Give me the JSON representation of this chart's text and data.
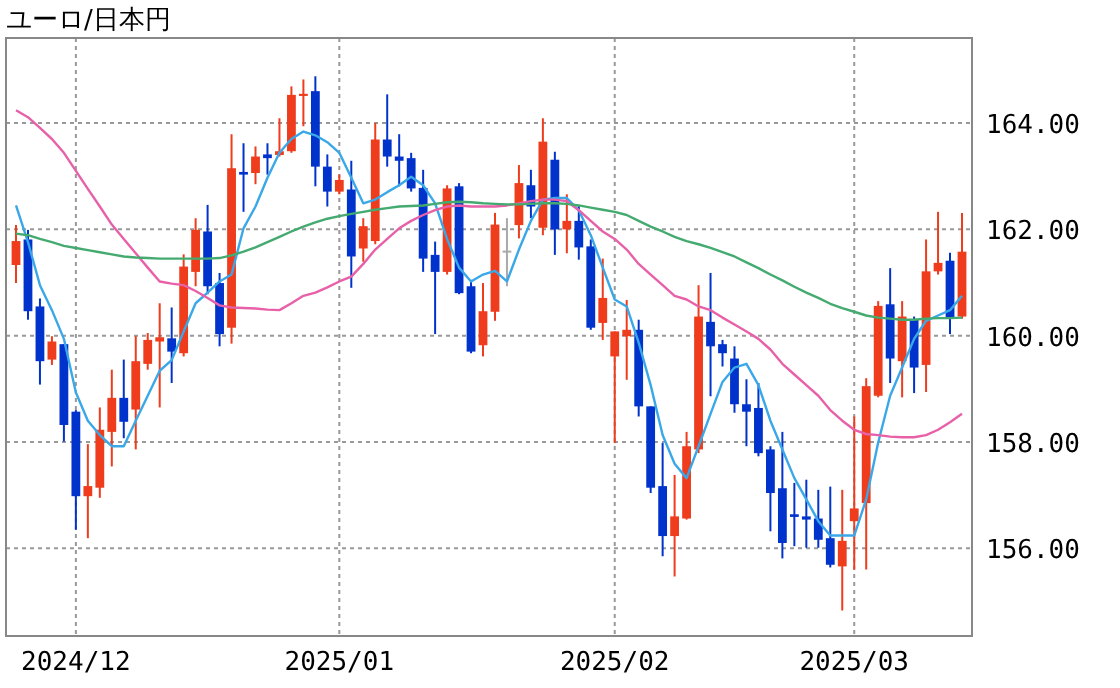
{
  "chart_data": {
    "type": "candlestick",
    "title": "ユーロ/日本円",
    "categories": [
      null,
      null,
      null,
      null,
      null,
      "2024/12",
      null,
      null,
      null,
      null,
      null,
      null,
      null,
      null,
      null,
      null,
      null,
      null,
      null,
      null,
      null,
      null,
      null,
      null,
      null,
      null,
      null,
      "2025/01",
      null,
      null,
      null,
      null,
      null,
      null,
      null,
      null,
      null,
      null,
      null,
      null,
      null,
      null,
      null,
      null,
      null,
      null,
      null,
      null,
      null,
      null,
      "2025/02",
      null,
      null,
      null,
      null,
      null,
      null,
      null,
      null,
      null,
      null,
      null,
      null,
      null,
      null,
      null,
      null,
      null,
      null,
      null,
      "2025/03",
      null,
      null,
      null,
      null,
      null,
      null,
      null,
      null,
      null
    ],
    "ohlc": [
      [
        161.33,
        162.08,
        160.99,
        161.78
      ],
      [
        161.81,
        161.99,
        160.3,
        160.46
      ],
      [
        160.55,
        160.7,
        159.08,
        159.52
      ],
      [
        159.55,
        159.99,
        159.45,
        159.89
      ],
      [
        159.84,
        159.84,
        158.01,
        158.32
      ],
      [
        158.57,
        158.6,
        156.35,
        156.98
      ],
      [
        156.98,
        157.96,
        156.19,
        157.17
      ],
      [
        157.14,
        158.65,
        156.95,
        158.23
      ],
      [
        158.19,
        159.36,
        157.54,
        158.83
      ],
      [
        158.83,
        159.55,
        158.07,
        158.38
      ],
      [
        158.61,
        159.99,
        157.86,
        159.52
      ],
      [
        159.47,
        160.05,
        159.36,
        159.92
      ],
      [
        159.89,
        160.61,
        158.65,
        159.97
      ],
      [
        159.95,
        160.53,
        159.11,
        159.7
      ],
      [
        159.67,
        161.53,
        159.61,
        161.3
      ],
      [
        161.2,
        162.21,
        160.93,
        161.99
      ],
      [
        161.96,
        162.46,
        160.78,
        160.93
      ],
      [
        160.99,
        161.18,
        159.8,
        160.03
      ],
      [
        160.15,
        163.79,
        159.85,
        163.15
      ],
      [
        163.08,
        163.62,
        162.33,
        163.03
      ],
      [
        163.06,
        163.56,
        162.85,
        163.37
      ],
      [
        163.41,
        163.62,
        163.03,
        163.34
      ],
      [
        163.4,
        164.09,
        163.37,
        163.47
      ],
      [
        163.47,
        164.69,
        163.44,
        164.53
      ],
      [
        164.51,
        164.82,
        163.94,
        164.55
      ],
      [
        164.6,
        164.88,
        162.81,
        163.18
      ],
      [
        163.18,
        163.41,
        162.43,
        162.71
      ],
      [
        162.71,
        163.03,
        162.66,
        162.93
      ],
      [
        162.75,
        163.29,
        160.9,
        161.49
      ],
      [
        161.64,
        162.21,
        161.39,
        162.06
      ],
      [
        161.78,
        164.0,
        161.72,
        163.69
      ],
      [
        163.69,
        164.54,
        163.18,
        163.37
      ],
      [
        163.37,
        163.79,
        162.81,
        163.29
      ],
      [
        163.34,
        163.44,
        162.71,
        162.77
      ],
      [
        162.78,
        163.12,
        161.2,
        161.45
      ],
      [
        161.52,
        161.77,
        160.03,
        161.2
      ],
      [
        161.2,
        162.83,
        161.15,
        162.77
      ],
      [
        162.81,
        162.87,
        160.78,
        160.8
      ],
      [
        160.93,
        161.05,
        159.67,
        159.7
      ],
      [
        159.82,
        160.99,
        159.61,
        160.46
      ],
      [
        160.45,
        162.31,
        160.28,
        162.09
      ],
      [
        161.6,
        162.21,
        160.93,
        161.6
      ],
      [
        162.08,
        163.21,
        161.83,
        162.87
      ],
      [
        162.83,
        163.12,
        162.21,
        162.43
      ],
      [
        162.03,
        164.09,
        161.89,
        163.65
      ],
      [
        163.31,
        163.46,
        161.52,
        162.0
      ],
      [
        162.0,
        162.66,
        161.55,
        162.16
      ],
      [
        162.16,
        162.46,
        161.43,
        161.66
      ],
      [
        161.68,
        161.81,
        160.11,
        160.15
      ],
      [
        160.24,
        161.45,
        159.92,
        160.71
      ],
      [
        159.61,
        160.08,
        157.98,
        160.08
      ],
      [
        159.99,
        160.67,
        159.17,
        160.11
      ],
      [
        160.11,
        160.3,
        158.48,
        158.67
      ],
      [
        158.67,
        158.67,
        157.04,
        157.14
      ],
      [
        157.17,
        157.98,
        155.85,
        156.23
      ],
      [
        156.23,
        157.38,
        155.47,
        156.6
      ],
      [
        156.56,
        158.19,
        156.54,
        157.92
      ],
      [
        157.86,
        160.95,
        157.79,
        160.36
      ],
      [
        160.26,
        161.18,
        158.86,
        159.8
      ],
      [
        159.84,
        159.92,
        159.42,
        159.67
      ],
      [
        159.57,
        159.8,
        158.55,
        158.71
      ],
      [
        158.71,
        159.18,
        157.92,
        158.57
      ],
      [
        158.64,
        159.11,
        157.73,
        157.79
      ],
      [
        157.86,
        157.92,
        156.32,
        157.04
      ],
      [
        157.13,
        158.19,
        155.81,
        156.1
      ],
      [
        156.64,
        157.23,
        156.04,
        156.59
      ],
      [
        156.6,
        157.29,
        156.01,
        156.54
      ],
      [
        156.56,
        157.1,
        156.01,
        156.16
      ],
      [
        156.19,
        157.16,
        155.64,
        155.69
      ],
      [
        155.66,
        157.1,
        154.83,
        156.14
      ],
      [
        156.51,
        158.48,
        155.6,
        156.75
      ],
      [
        156.85,
        159.2,
        155.6,
        159.05
      ],
      [
        158.87,
        160.65,
        158.84,
        160.56
      ],
      [
        160.59,
        161.27,
        159.11,
        159.57
      ],
      [
        159.52,
        160.65,
        158.84,
        160.36
      ],
      [
        160.3,
        160.36,
        158.92,
        159.4
      ],
      [
        159.45,
        161.81,
        158.94,
        161.21
      ],
      [
        161.21,
        162.33,
        161.15,
        161.37
      ],
      [
        161.41,
        161.56,
        160.03,
        160.33
      ],
      [
        160.36,
        162.31,
        160.32,
        161.58
      ]
    ],
    "colors": [
      "#ee3c1c",
      "#0033cc",
      "#0033cc",
      "#ee3c1c",
      "#0033cc",
      "#0033cc",
      "#ee3c1c",
      "#ee3c1c",
      "#ee3c1c",
      "#0033cc",
      "#ee3c1c",
      "#ee3c1c",
      "#ee3c1c",
      "#0033cc",
      "#ee3c1c",
      "#ee3c1c",
      "#0033cc",
      "#0033cc",
      "#ee3c1c",
      "#0033cc",
      "#ee3c1c",
      "#0033cc",
      "#ee3c1c",
      "#ee3c1c",
      "#ee3c1c",
      "#0033cc",
      "#0033cc",
      "#ee3c1c",
      "#0033cc",
      "#ee3c1c",
      "#ee3c1c",
      "#0033cc",
      "#0033cc",
      "#0033cc",
      "#0033cc",
      "#0033cc",
      "#ee3c1c",
      "#0033cc",
      "#0033cc",
      "#ee3c1c",
      "#ee3c1c",
      "#aaaaaa",
      "#ee3c1c",
      "#0033cc",
      "#ee3c1c",
      "#0033cc",
      "#ee3c1c",
      "#0033cc",
      "#0033cc",
      "#ee3c1c",
      "#ee3c1c",
      "#ee3c1c",
      "#0033cc",
      "#0033cc",
      "#0033cc",
      "#ee3c1c",
      "#ee3c1c",
      "#ee3c1c",
      "#0033cc",
      "#0033cc",
      "#0033cc",
      "#0033cc",
      "#0033cc",
      "#0033cc",
      "#0033cc",
      "#0033cc",
      "#0033cc",
      "#0033cc",
      "#0033cc",
      "#ee3c1c",
      "#ee3c1c",
      "#ee3c1c",
      "#ee3c1c",
      "#0033cc",
      "#ee3c1c",
      "#0033cc",
      "#ee3c1c",
      "#ee3c1c",
      "#0033cc",
      "#ee3c1c"
    ],
    "series": [
      {
        "type": "line",
        "color": "#3aa8e8",
        "values": [
          162.45,
          161.76,
          160.95,
          160.48,
          159.94,
          158.93,
          158.4,
          158.13,
          157.92,
          157.92,
          158.4,
          158.87,
          159.34,
          159.54,
          160.08,
          160.61,
          160.81,
          161.02,
          161.15,
          162.02,
          162.43,
          162.97,
          163.44,
          163.7,
          163.84,
          163.77,
          163.64,
          163.44,
          162.97,
          162.49,
          162.56,
          162.7,
          162.83,
          162.99,
          162.83,
          162.49,
          161.82,
          161.28,
          161.02,
          161.15,
          161.22,
          161.02,
          161.62,
          162.16,
          162.56,
          162.59,
          162.59,
          162.36,
          161.89,
          161.28,
          160.68,
          160.55,
          159.87,
          159.07,
          158.13,
          157.59,
          157.32,
          157.92,
          158.53,
          159.13,
          159.4,
          159.47,
          159.07,
          158.4,
          157.86,
          157.32,
          156.92,
          156.51,
          156.24,
          156.24,
          156.24,
          156.92,
          157.99,
          158.87,
          159.4,
          159.94,
          160.28,
          160.38,
          160.48,
          160.75
        ]
      },
      {
        "type": "line",
        "color": "#e860a8",
        "values": [
          164.24,
          164.11,
          163.91,
          163.7,
          163.44,
          163.1,
          162.76,
          162.43,
          162.09,
          161.82,
          161.55,
          161.28,
          161.02,
          160.98,
          160.95,
          160.84,
          160.71,
          160.57,
          160.53,
          160.52,
          160.51,
          160.49,
          160.48,
          160.61,
          160.75,
          160.81,
          160.91,
          161.02,
          161.11,
          161.35,
          161.62,
          161.82,
          162.02,
          162.16,
          162.27,
          162.36,
          162.43,
          162.45,
          162.43,
          162.43,
          162.43,
          162.45,
          162.49,
          162.53,
          162.56,
          162.56,
          162.53,
          162.36,
          162.16,
          161.96,
          161.82,
          161.62,
          161.35,
          161.15,
          160.95,
          160.75,
          160.68,
          160.55,
          160.48,
          160.34,
          160.21,
          160.08,
          159.94,
          159.74,
          159.47,
          159.27,
          159.07,
          158.87,
          158.6,
          158.4,
          158.23,
          158.15,
          158.13,
          158.1,
          158.09,
          158.09,
          158.13,
          158.23,
          158.37,
          158.53
        ]
      },
      {
        "type": "line",
        "color": "#44aa70",
        "values": [
          161.92,
          161.89,
          161.82,
          161.76,
          161.69,
          161.65,
          161.61,
          161.57,
          161.53,
          161.49,
          161.47,
          161.46,
          161.45,
          161.45,
          161.45,
          161.45,
          161.45,
          161.46,
          161.51,
          161.58,
          161.66,
          161.76,
          161.86,
          161.96,
          162.05,
          162.13,
          162.2,
          162.25,
          162.29,
          162.33,
          162.37,
          162.4,
          162.43,
          162.44,
          162.45,
          162.48,
          162.51,
          162.52,
          162.51,
          162.49,
          162.48,
          162.47,
          162.47,
          162.48,
          162.49,
          162.49,
          162.48,
          162.45,
          162.41,
          162.37,
          162.33,
          162.27,
          162.16,
          162.05,
          161.96,
          161.86,
          161.78,
          161.72,
          161.65,
          161.57,
          161.49,
          161.38,
          161.27,
          161.15,
          161.04,
          160.92,
          160.81,
          160.71,
          160.6,
          160.52,
          160.45,
          160.38,
          160.34,
          160.32,
          160.3,
          160.3,
          160.32,
          160.33,
          160.33,
          160.34
        ]
      }
    ],
    "ylim": [
      154.35,
      165.6
    ],
    "yticks": [
      {
        "value": 156,
        "label": "156.00"
      },
      {
        "value": 158,
        "label": "158.00"
      },
      {
        "value": 160,
        "label": "160.00"
      },
      {
        "value": 162,
        "label": "162.00"
      },
      {
        "value": 164,
        "label": "164.00"
      }
    ],
    "grid": true
  }
}
